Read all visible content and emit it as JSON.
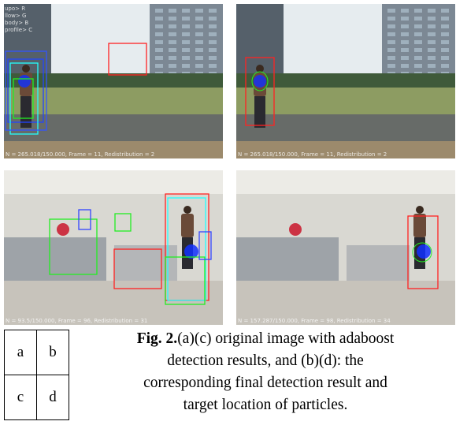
{
  "panels": [
    {
      "legend": [
        "upo> R",
        "llow> G",
        "body> B",
        "profile> C"
      ],
      "status": "N = 265.018/150.000, Frame = 11, Redistribution = 2"
    },
    {
      "status": "N = 265.018/150.000, Frame = 11, Redistribution = 2"
    },
    {
      "status": "N = 93.5/150.000, Frame = 96, Redistribution = 31"
    },
    {
      "status": "N = 157.287/150.000, Frame = 98, Redistribution = 34"
    }
  ],
  "table": {
    "rows": [
      [
        "a",
        "b"
      ],
      [
        "c",
        "d"
      ]
    ]
  },
  "caption": {
    "label": "Fig. 2.",
    "lines": [
      "(a)(c) original image with adaboost",
      "detection results, and (b)(d): the",
      "corresponding final detection result and",
      "target location of particles."
    ]
  }
}
